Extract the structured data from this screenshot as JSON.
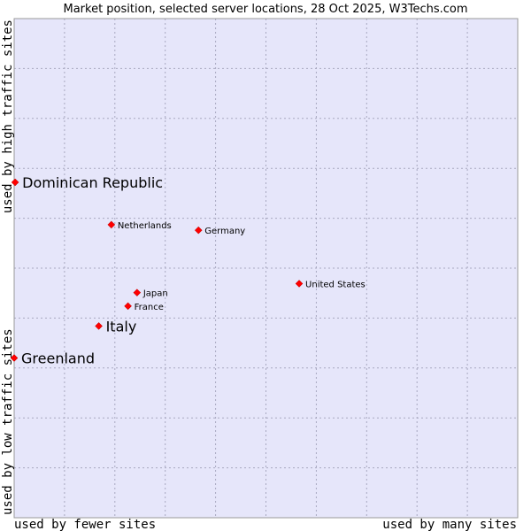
{
  "chart_data": {
    "type": "scatter",
    "title": "Market position, selected server locations, 28 Oct 2025, W3Techs.com",
    "xlabel_low": "used by fewer sites",
    "xlabel_high": "used by many sites",
    "ylabel_low": "used by low traffic sites",
    "ylabel_high": "used by high traffic sites",
    "xlim": [
      0,
      100
    ],
    "ylim": [
      0,
      100
    ],
    "grid": true,
    "colors": {
      "plot_bg": "#e6e6fa",
      "grid": "#a8a8c0",
      "marker": "#ff0000",
      "marker_edge": "#b00000"
    },
    "points": [
      {
        "name": "Dominican Republic",
        "x": 0.2,
        "y": 67.2,
        "emphasis": true
      },
      {
        "name": "Netherlands",
        "x": 19.3,
        "y": 58.7,
        "emphasis": false
      },
      {
        "name": "Germany",
        "x": 36.6,
        "y": 57.6,
        "emphasis": false
      },
      {
        "name": "United States",
        "x": 56.6,
        "y": 46.9,
        "emphasis": false
      },
      {
        "name": "Japan",
        "x": 24.4,
        "y": 45.1,
        "emphasis": false
      },
      {
        "name": "France",
        "x": 22.6,
        "y": 42.4,
        "emphasis": false
      },
      {
        "name": "Italy",
        "x": 16.8,
        "y": 38.4,
        "emphasis": true
      },
      {
        "name": "Greenland",
        "x": 0,
        "y": 32.0,
        "emphasis": true
      }
    ]
  }
}
